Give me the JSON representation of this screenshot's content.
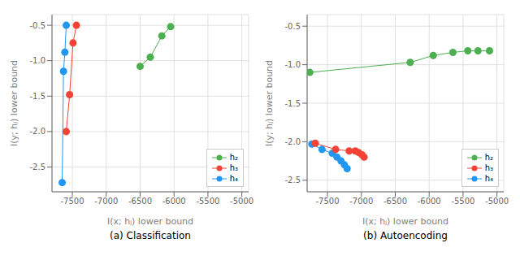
{
  "chart_data": [
    {
      "type": "line",
      "title": "(a) Classification",
      "xlabel": "I(x; hⱼ) lower bound",
      "ylabel": "I(y; hⱼ) lower bound",
      "series": [
        {
          "name": "h₂",
          "color": "#4caf50",
          "marker": "circle",
          "line_style": "solid",
          "x": [
            -6500,
            -6350,
            -6180,
            -6050
          ],
          "values": [
            -1.08,
            -0.95,
            -0.65,
            -0.52
          ]
        },
        {
          "name": "h₃",
          "color": "#f44336",
          "marker": "circle",
          "line_style": "solid",
          "x": [
            -7590,
            -7540,
            -7490,
            -7440
          ],
          "values": [
            -2.0,
            -1.48,
            -0.75,
            -0.5
          ]
        },
        {
          "name": "h₄",
          "color": "#2196f3",
          "marker": "circle",
          "line_style": "solid",
          "x": [
            -7650,
            -7630,
            -7610,
            -7590
          ],
          "values": [
            -2.72,
            -1.15,
            -0.88,
            -0.5
          ]
        }
      ],
      "xlim": [
        -7800,
        -4900
      ],
      "xticks": [
        -7500,
        -7000,
        -6500,
        -6000,
        -5500,
        -5000
      ],
      "ylim": [
        -2.85,
        -0.35
      ],
      "yticks": [
        -0.5,
        {
          "value": -1.0,
          "label": "-1.0"
        },
        -1.5,
        {
          "value": -2.0,
          "label": "-2.0"
        },
        -2.5
      ],
      "grid": true,
      "legend": "lower right"
    },
    {
      "type": "line",
      "title": "(b) Autoencoding",
      "xlabel": "I(x; hⱼ) lower bound",
      "ylabel": "I(y; hⱼ) lower bound",
      "series": [
        {
          "name": "h₂",
          "color": "#4caf50",
          "marker": "circle",
          "line_style": "solid",
          "x": [
            -7760,
            -6280,
            -5940,
            -5650,
            -5430,
            -5280,
            -5110
          ],
          "values": [
            -1.1,
            -0.97,
            -0.88,
            -0.84,
            -0.82,
            -0.82,
            -0.82
          ]
        },
        {
          "name": "h₃",
          "color": "#f44336",
          "marker": "circle",
          "line_style": "solid",
          "x": [
            -7680,
            -7380,
            -7180,
            -7090,
            -7040,
            -6990,
            -6960
          ],
          "values": [
            -2.02,
            -2.1,
            -2.12,
            -2.12,
            -2.14,
            -2.17,
            -2.2
          ]
        },
        {
          "name": "h₄",
          "color": "#2196f3",
          "marker": "circle",
          "line_style": "solid",
          "x": [
            -7730,
            -7580,
            -7430,
            -7360,
            -7300,
            -7250,
            -7210
          ],
          "values": [
            -2.03,
            -2.1,
            -2.15,
            -2.2,
            -2.25,
            -2.3,
            -2.35
          ]
        }
      ],
      "xlim": [
        -7800,
        -4900
      ],
      "xticks": [
        -7500,
        -7000,
        -6500,
        -6000,
        -5500,
        -5000
      ],
      "ylim": [
        -2.65,
        -0.35
      ],
      "yticks": [
        -0.5,
        {
          "value": -1.0,
          "label": "-1.0"
        },
        -1.5,
        {
          "value": -2.0,
          "label": "-2.0"
        },
        -2.5
      ],
      "grid": true,
      "legend": "lower right"
    }
  ]
}
